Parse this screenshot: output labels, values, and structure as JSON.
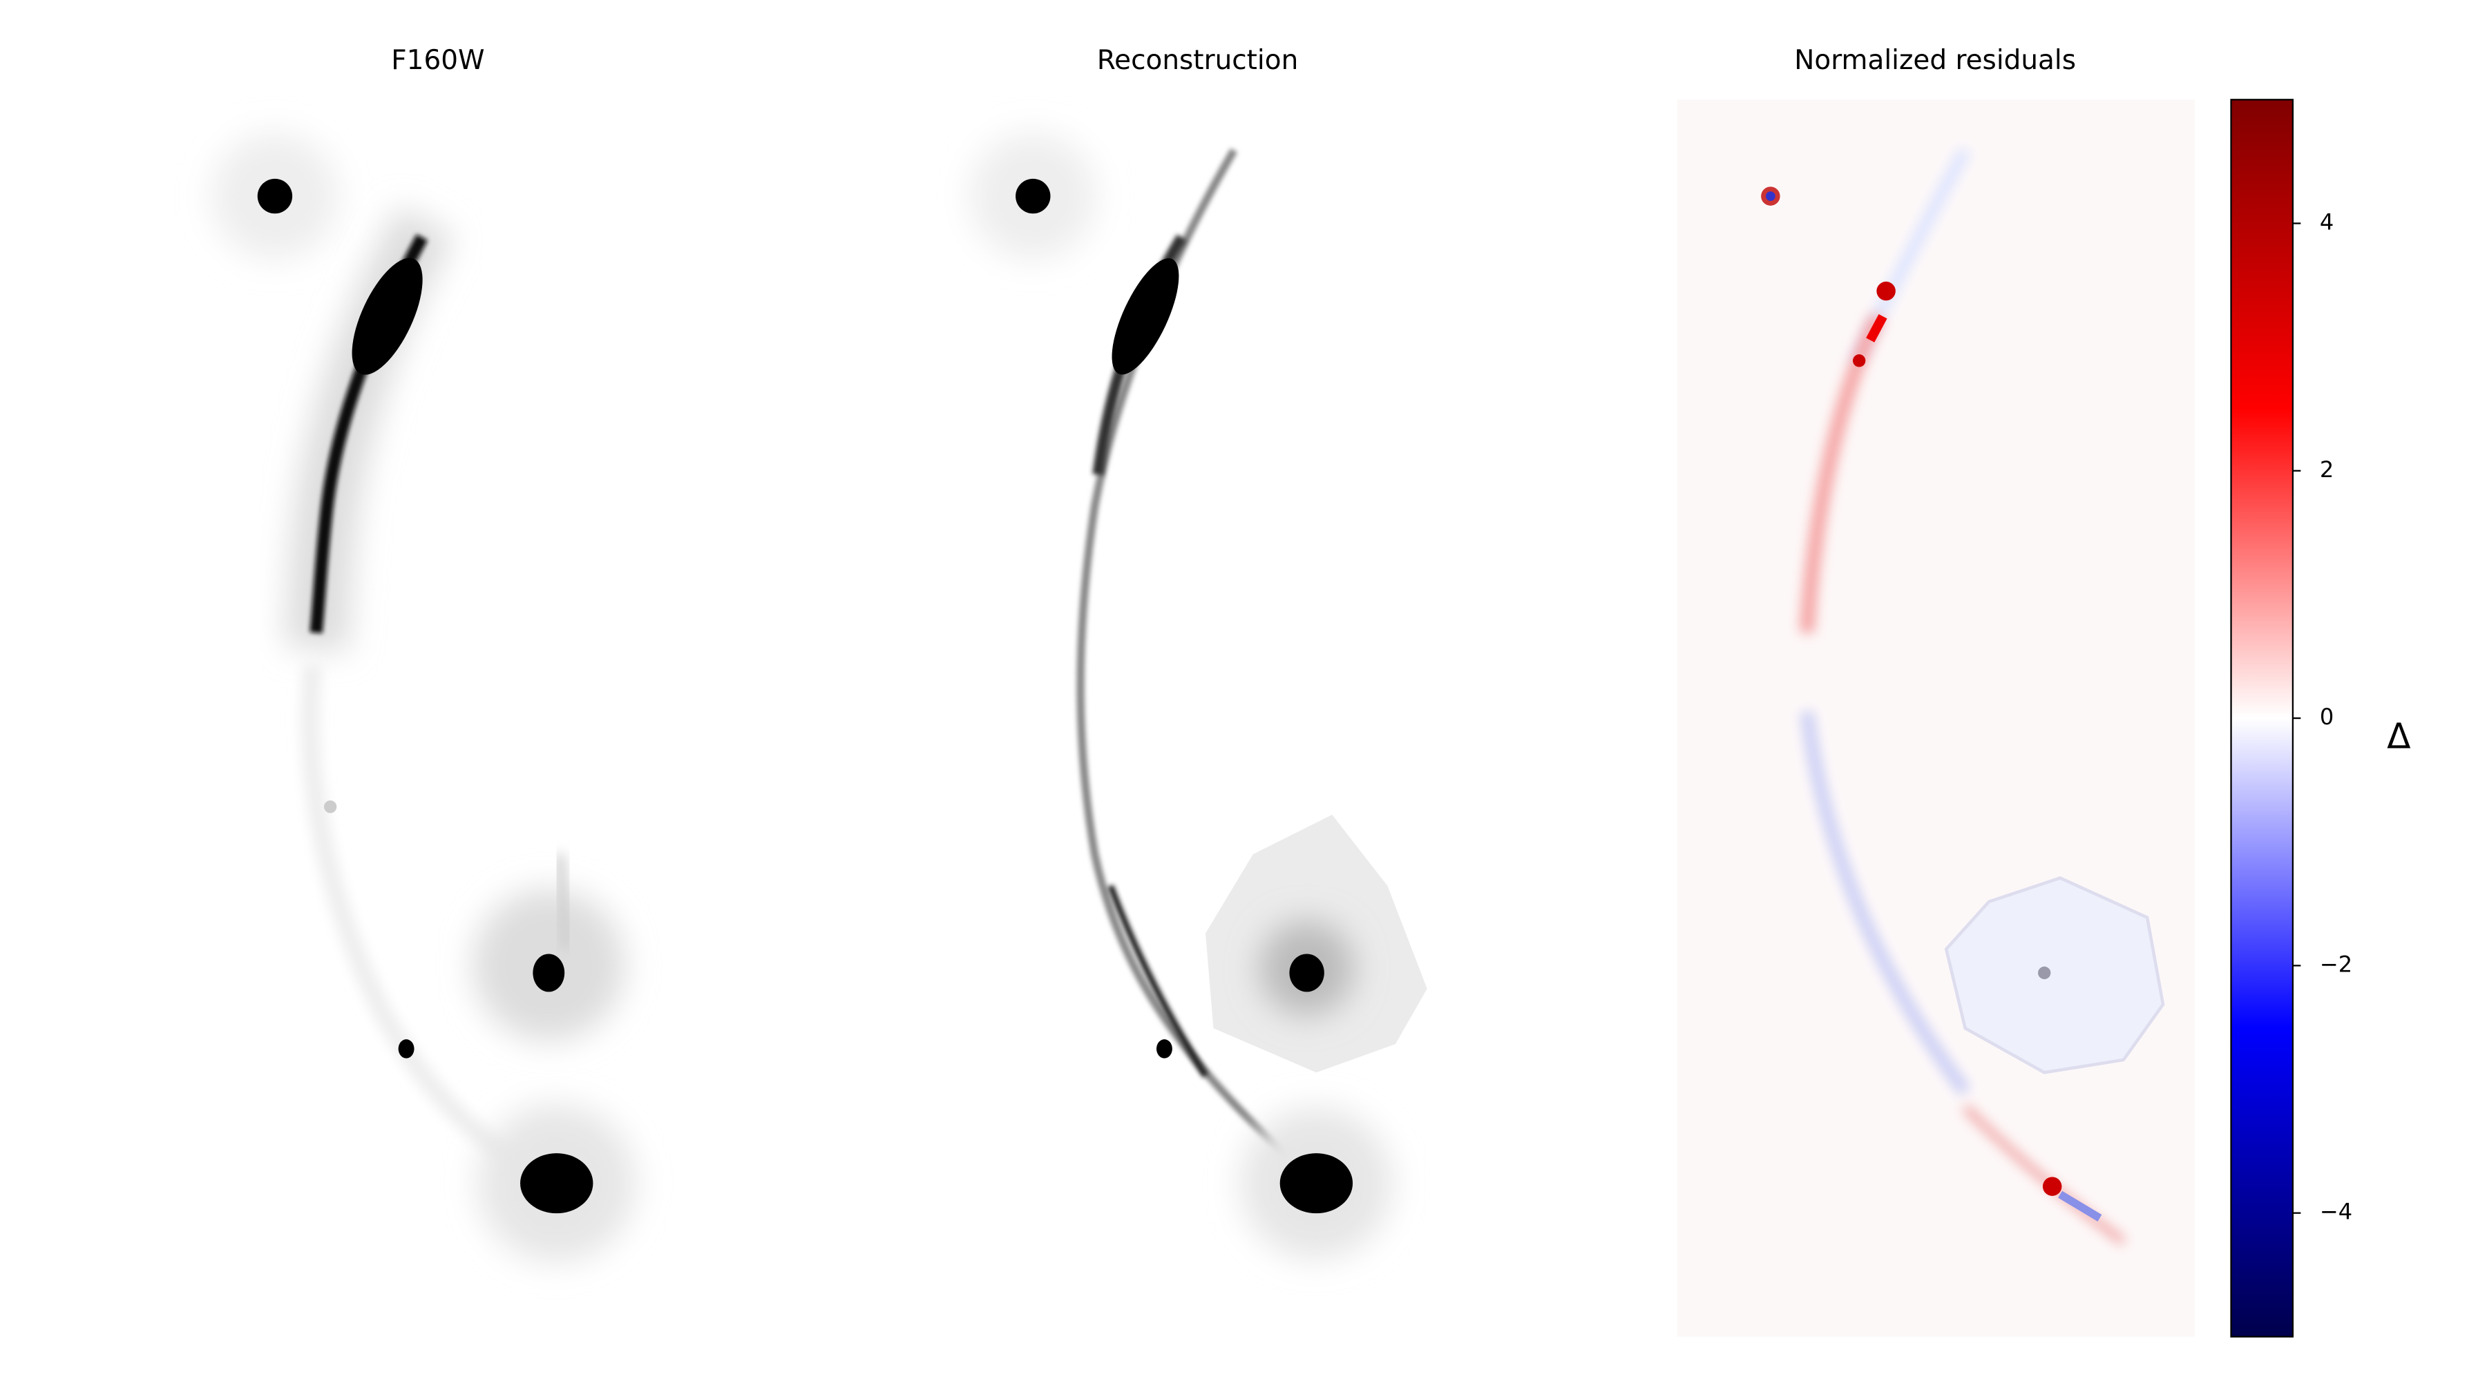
{
  "chart_data": {
    "type": "image-grid",
    "panels": [
      {
        "title": "F160W"
      },
      {
        "title": "Reconstruction"
      },
      {
        "title": "Normalized residuals"
      }
    ],
    "colorbar": {
      "label": "Δ",
      "ylim": [
        -5,
        5
      ],
      "yticks": [
        {
          "value": -4,
          "label": "−4"
        },
        {
          "value": -2,
          "label": "−2"
        },
        0,
        2,
        4
      ],
      "colors": [
        "#00004c",
        "#0000ff",
        "#ffffff",
        "#ff0000",
        "#800000"
      ]
    }
  }
}
